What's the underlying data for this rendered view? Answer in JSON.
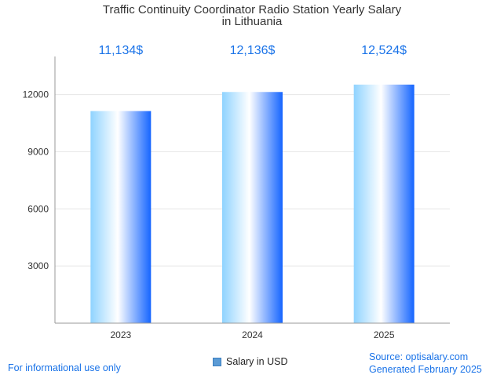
{
  "chart_data": {
    "type": "bar",
    "title": [
      "Traffic Continuity Coordinator Radio Station Yearly Salary",
      "in Lithuania"
    ],
    "categories": [
      "2023",
      "2024",
      "2025"
    ],
    "series": [
      {
        "name": "Salary in USD",
        "values": [
          11134,
          12136,
          12524
        ],
        "labels": [
          "11,134$",
          "12,136$",
          "12,524$"
        ]
      }
    ],
    "y_ticks": [
      3000,
      6000,
      9000,
      12000
    ],
    "ylim": [
      0,
      14000
    ],
    "grid": true,
    "legend_position": "bottom",
    "colors": {
      "bar_light": "#ffffff",
      "bar_mid": "#7fd4ff",
      "bar_dark": "#1565ff",
      "label": "#1a73e8"
    }
  },
  "footer": {
    "disclaimer": "For informational use only",
    "source": "Source: optisalary.com",
    "generated": "Generated February 2025"
  }
}
